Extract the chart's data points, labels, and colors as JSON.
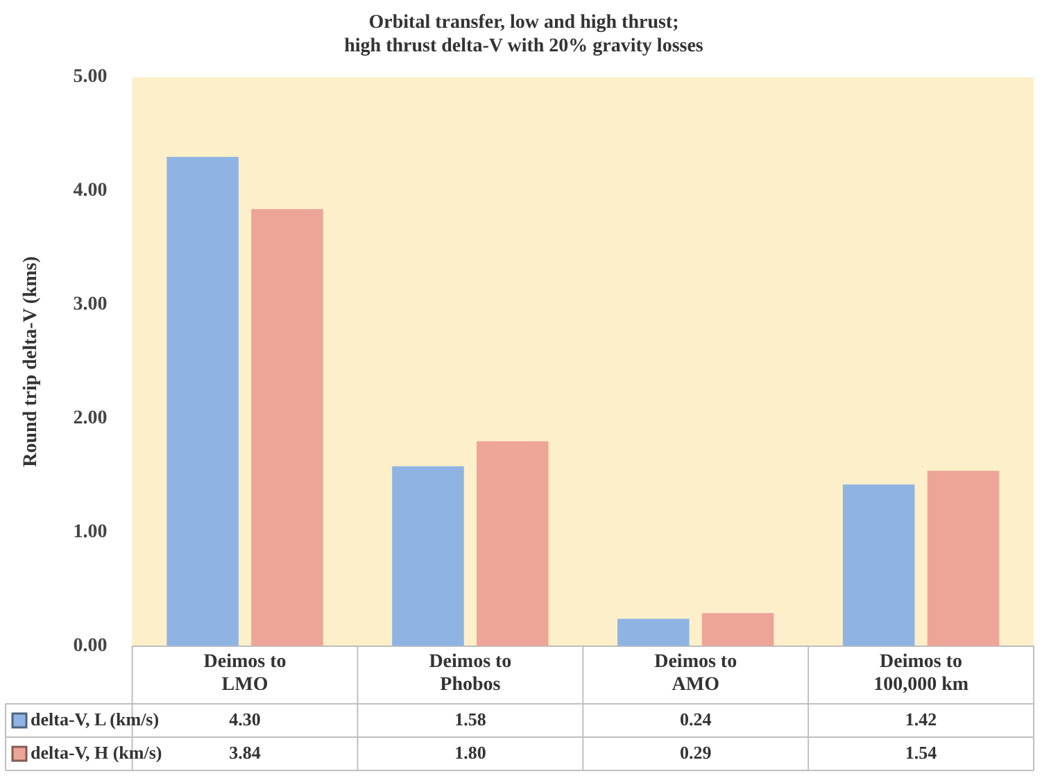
{
  "chart_data": {
    "type": "bar",
    "title": "Orbital transfer, low and high thrust;\nhigh thrust delta-V with 20% gravity losses",
    "ylabel": "Round trip delta-V (kms)",
    "categories": [
      "Deimos to LMO",
      "Deimos to Phobos",
      "Deimos to AMO",
      "Deimos to 100,000 km"
    ],
    "series": [
      {
        "name": "delta-V, L (km/s)",
        "color": "#8fb4e3",
        "values": [
          4.3,
          1.58,
          0.24,
          1.42
        ]
      },
      {
        "name": "delta-V, H (km/s)",
        "color": "#eda597",
        "values": [
          3.84,
          1.8,
          0.29,
          1.54
        ]
      }
    ],
    "ylim": [
      0,
      5
    ],
    "yticks": [
      {
        "value": 0,
        "label": "0.00"
      },
      {
        "value": 1,
        "label": "1.00"
      },
      {
        "value": 2,
        "label": "2.00"
      },
      {
        "value": 3,
        "label": "3.00"
      },
      {
        "value": 4,
        "label": "4.00"
      },
      {
        "value": 5,
        "label": "5.00"
      }
    ],
    "value_labels": [
      [
        "4.30",
        "1.58",
        "0.24",
        "1.42"
      ],
      [
        "3.84",
        "1.80",
        "0.29",
        "1.54"
      ]
    ],
    "grid": false,
    "legend": "bottom"
  }
}
